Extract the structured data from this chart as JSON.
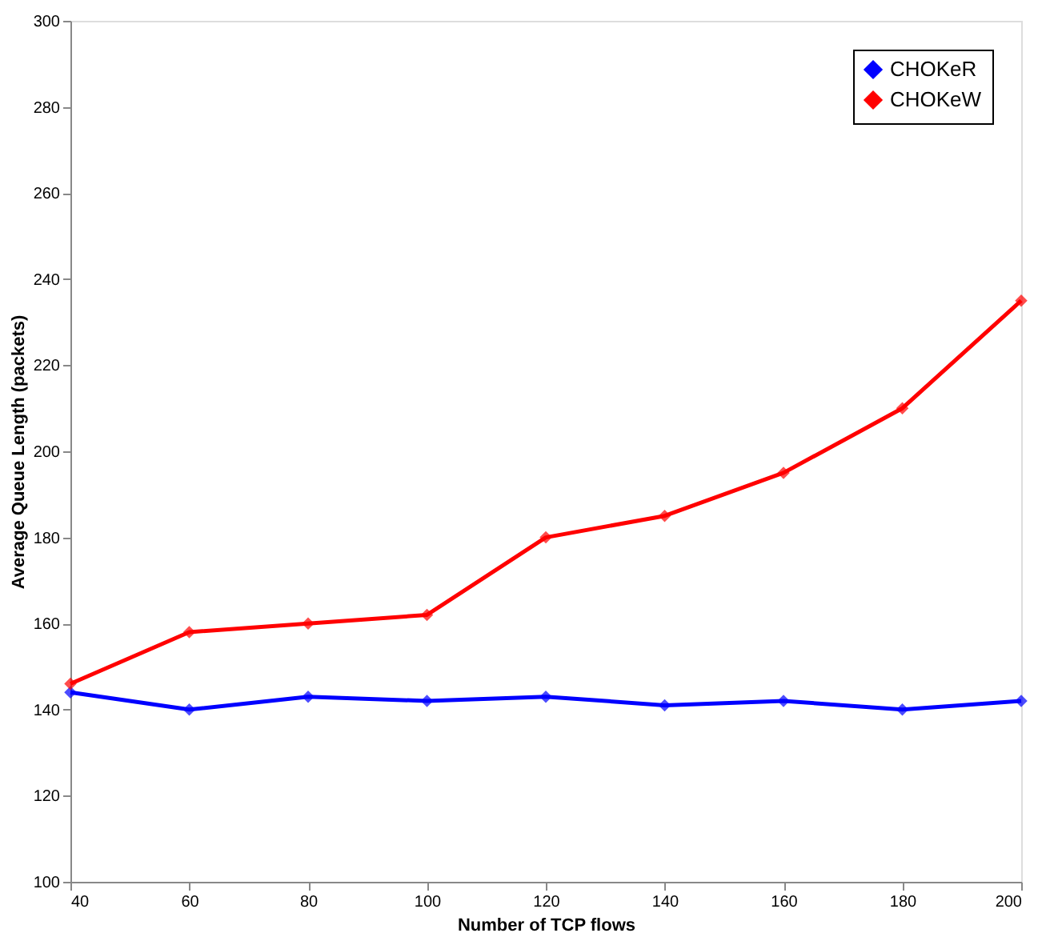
{
  "chart_data": {
    "type": "line",
    "xlabel": "Number of TCP flows",
    "ylabel": "Average Queue Length (packets)",
    "x": [
      40,
      60,
      80,
      100,
      120,
      140,
      160,
      180,
      200
    ],
    "series": [
      {
        "name": "CHOKeR",
        "color": "#0000ff",
        "values": [
          144,
          140,
          143,
          142,
          143,
          141,
          142,
          140,
          142
        ]
      },
      {
        "name": "CHOKeW",
        "color": "#ff0000",
        "values": [
          146,
          158,
          160,
          162,
          180,
          185,
          195,
          210,
          235
        ]
      }
    ],
    "xlim": [
      40,
      200
    ],
    "xticks": [
      40,
      60,
      80,
      100,
      120,
      140,
      160,
      180,
      200
    ],
    "ylim": [
      100,
      300
    ],
    "yticks": [
      100,
      120,
      140,
      160,
      180,
      200,
      220,
      240,
      260,
      280,
      300
    ],
    "legend": "top right",
    "marker": "diamond",
    "line_style": "solid",
    "grid": false
  }
}
